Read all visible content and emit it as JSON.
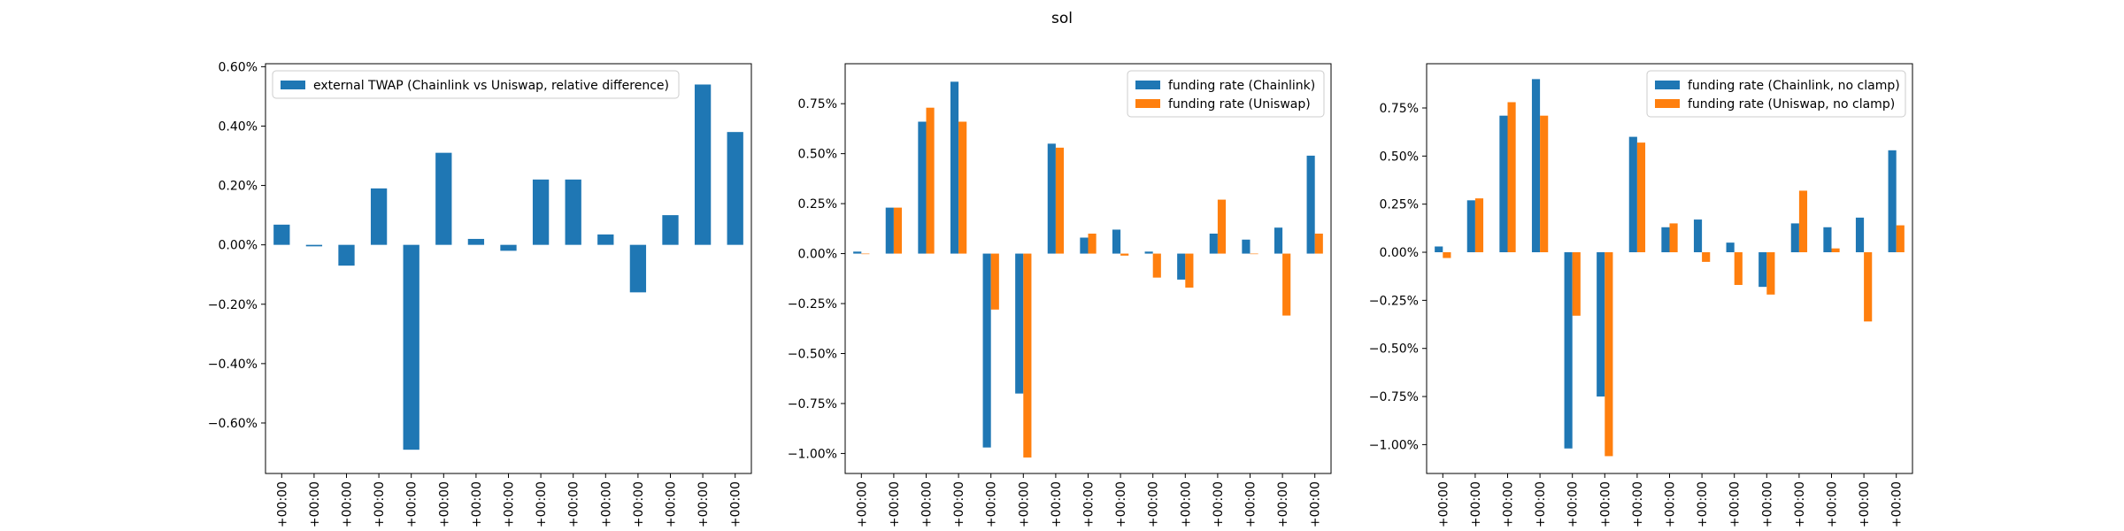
{
  "figure": {
    "title": "sol",
    "colors": {
      "blue": "#1f77b4",
      "orange": "#ff7f0e"
    }
  },
  "chart_data": [
    {
      "type": "bar",
      "legend_position": "upper-left",
      "grid": false,
      "ylim": [
        -0.0077,
        0.0061
      ],
      "yticks": [
        -0.006,
        -0.004,
        -0.002,
        0,
        0.002,
        0.004,
        0.006
      ],
      "ytick_labels": [
        "−0.60%",
        "−0.40%",
        "−0.20%",
        "0.00%",
        "0.20%",
        "0.40%",
        "0.60%"
      ],
      "x_tick_labels": [
        "+00:00",
        "+00:00",
        "+00:00",
        "+00:00",
        "+00:00",
        "+00:00",
        "+00:00",
        "+00:00",
        "+00:00",
        "+00:00",
        "+00:00",
        "+00:00",
        "+00:00",
        "+00:00",
        "+00:00"
      ],
      "series": [
        {
          "name": "external TWAP (Chainlink vs Uniswap, relative difference)",
          "color": "#1f77b4",
          "values": [
            0.00068,
            -5e-05,
            -0.0007,
            0.0019,
            -0.0069,
            0.0031,
            0.0002,
            -0.0002,
            0.0022,
            0.0022,
            0.00035,
            -0.0016,
            0.001,
            0.0054,
            0.0038
          ]
        }
      ]
    },
    {
      "type": "bar",
      "legend_position": "upper-right",
      "grid": false,
      "ylim": [
        -1.1,
        0.95
      ],
      "yticks": [
        -1.0,
        -0.75,
        -0.5,
        -0.25,
        0,
        0.25,
        0.5,
        0.75
      ],
      "ytick_labels": [
        "−1.00%",
        "−0.75%",
        "−0.50%",
        "−0.25%",
        "0.00%",
        "0.25%",
        "0.50%",
        "0.75%"
      ],
      "x_tick_labels": [
        "+00:00",
        "+00:00",
        "+00:00",
        "+00:00",
        "+00:00",
        "+00:00",
        "+00:00",
        "+00:00",
        "+00:00",
        "+00:00",
        "+00:00",
        "+00:00",
        "+00:00",
        "+00:00",
        "+00:00"
      ],
      "series": [
        {
          "name": "funding rate (Chainlink)",
          "color": "#1f77b4",
          "values": [
            0.01,
            0.23,
            0.66,
            0.86,
            -0.97,
            -0.7,
            0.55,
            0.08,
            0.12,
            0.01,
            -0.13,
            0.1,
            0.07,
            0.13,
            0.49
          ]
        },
        {
          "name": "funding rate (Uniswap)",
          "color": "#ff7f0e",
          "values": [
            0.0,
            0.23,
            0.73,
            0.66,
            -0.28,
            -1.02,
            0.53,
            0.1,
            -0.01,
            -0.12,
            -0.17,
            0.27,
            0.0,
            -0.31,
            0.1
          ]
        }
      ]
    },
    {
      "type": "bar",
      "legend_position": "upper-right",
      "grid": false,
      "ylim": [
        -1.15,
        0.98
      ],
      "yticks": [
        -1.0,
        -0.75,
        -0.5,
        -0.25,
        0,
        0.25,
        0.5,
        0.75
      ],
      "ytick_labels": [
        "−1.00%",
        "−0.75%",
        "−0.50%",
        "−0.25%",
        "0.00%",
        "0.25%",
        "0.50%",
        "0.75%"
      ],
      "x_tick_labels": [
        "+00:00",
        "+00:00",
        "+00:00",
        "+00:00",
        "+00:00",
        "+00:00",
        "+00:00",
        "+00:00",
        "+00:00",
        "+00:00",
        "+00:00",
        "+00:00",
        "+00:00",
        "+00:00",
        "+00:00"
      ],
      "series": [
        {
          "name": "funding rate (Chainlink, no clamp)",
          "color": "#1f77b4",
          "values": [
            0.03,
            0.27,
            0.71,
            0.9,
            -1.02,
            -0.75,
            0.6,
            0.13,
            0.17,
            0.05,
            -0.18,
            0.15,
            0.13,
            0.18,
            0.53
          ]
        },
        {
          "name": "funding rate (Uniswap, no clamp)",
          "color": "#ff7f0e",
          "values": [
            -0.03,
            0.28,
            0.78,
            0.71,
            -0.33,
            -1.06,
            0.57,
            0.15,
            -0.05,
            -0.17,
            -0.22,
            0.32,
            0.02,
            -0.36,
            0.14
          ]
        }
      ]
    }
  ]
}
